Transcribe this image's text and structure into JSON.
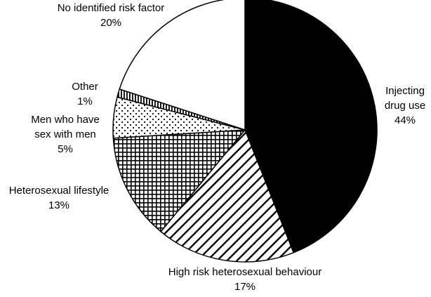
{
  "chart_data": {
    "type": "pie",
    "start_angle_deg": 0,
    "direction": "clockwise",
    "slices": [
      {
        "lines": [
          "Injecting",
          "drug use"
        ],
        "pct_label": "44%",
        "value": 44,
        "pattern": "solid-black"
      },
      {
        "lines": [
          "High risk heterosexual behaviour"
        ],
        "pct_label": "17%",
        "value": 17,
        "pattern": "diagonal-hatch"
      },
      {
        "lines": [
          "Heterosexual lifestyle"
        ],
        "pct_label": "13%",
        "value": 13,
        "pattern": "crosshatch-grid"
      },
      {
        "lines": [
          "Men who have",
          "sex with men"
        ],
        "pct_label": "5%",
        "value": 5,
        "pattern": "dots"
      },
      {
        "lines": [
          "Other"
        ],
        "pct_label": "1%",
        "value": 1,
        "pattern": "vertical-lines"
      },
      {
        "lines": [
          "No identified risk factor"
        ],
        "pct_label": "20%",
        "value": 20,
        "pattern": "white"
      }
    ]
  }
}
